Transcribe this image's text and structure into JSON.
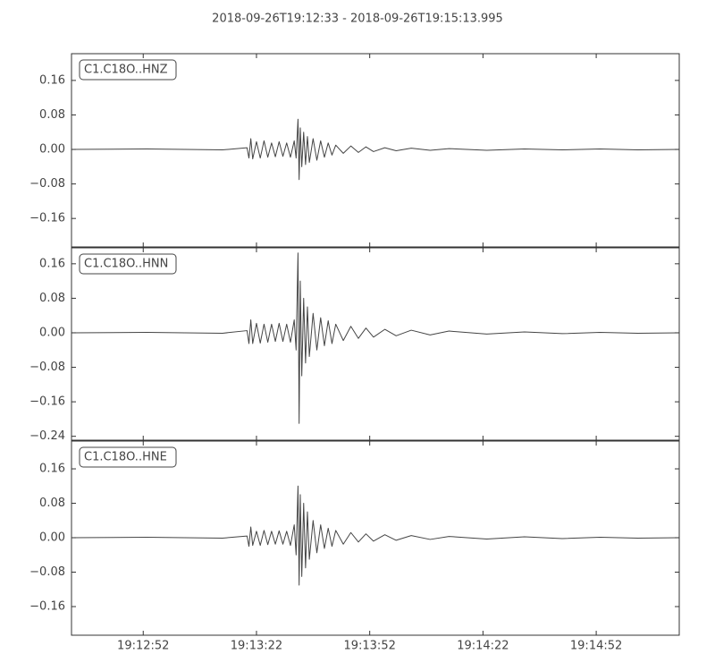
{
  "title": "2018-09-26T19:12:33  -  2018-09-26T19:15:13.995",
  "chart_data": [
    {
      "type": "line",
      "label": "C1.C18O..HNZ",
      "color": "#444444",
      "x": [
        0,
        20,
        40,
        46.5,
        47,
        47.5,
        48,
        49,
        50,
        51,
        52,
        53,
        54,
        55,
        56,
        57,
        58,
        59,
        59.5,
        60,
        60.3,
        60.6,
        61,
        61.5,
        62,
        62.5,
        63,
        64,
        65,
        66,
        67,
        68,
        69,
        70,
        72,
        74,
        76,
        78,
        80,
        83,
        86,
        90,
        95,
        100,
        110,
        120,
        130,
        140,
        150,
        160.995
      ],
      "values": [
        0,
        0.001,
        -0.001,
        0.004,
        -0.02,
        0.025,
        -0.022,
        0.018,
        -0.02,
        0.02,
        -0.018,
        0.015,
        -0.017,
        0.018,
        -0.016,
        0.015,
        -0.018,
        0.02,
        -0.02,
        0.07,
        -0.07,
        0.05,
        -0.04,
        0.04,
        -0.035,
        0.03,
        -0.03,
        0.025,
        -0.025,
        0.02,
        -0.018,
        0.015,
        -0.013,
        0.01,
        -0.009,
        0.008,
        -0.007,
        0.006,
        -0.005,
        0.004,
        -0.003,
        0.003,
        -0.002,
        0.002,
        -0.002,
        0.001,
        -0.001,
        0.001,
        -0.001,
        0
      ],
      "xlim": [
        0,
        160.995
      ],
      "ylim": [
        -0.226,
        0.222
      ],
      "yticks": [
        {
          "value": -0.16,
          "label": "−0.16"
        },
        {
          "value": -0.08,
          "label": "−0.08"
        },
        {
          "value": 0,
          "label": "0.00"
        },
        0.08,
        0.16
      ]
    },
    {
      "type": "line",
      "label": "C1.C18O..HNN",
      "color": "#444444",
      "x": [
        0,
        20,
        40,
        46.5,
        47,
        47.5,
        48,
        49,
        50,
        51,
        52,
        53,
        54,
        55,
        56,
        57,
        58,
        59,
        59.5,
        60,
        60.3,
        60.6,
        61,
        61.5,
        62,
        62.5,
        63,
        64,
        65,
        66,
        67,
        68,
        69,
        70,
        72,
        74,
        76,
        78,
        80,
        83,
        86,
        90,
        95,
        100,
        110,
        120,
        130,
        140,
        150,
        160.995
      ],
      "values": [
        0,
        0.001,
        -0.001,
        0.005,
        -0.025,
        0.03,
        -0.025,
        0.022,
        -0.024,
        0.02,
        -0.022,
        0.02,
        -0.02,
        0.022,
        -0.02,
        0.02,
        -0.022,
        0.03,
        -0.04,
        0.185,
        -0.21,
        0.12,
        -0.1,
        0.08,
        -0.07,
        0.06,
        -0.055,
        0.045,
        -0.04,
        0.035,
        -0.03,
        0.028,
        -0.025,
        0.02,
        -0.018,
        0.015,
        -0.013,
        0.011,
        -0.01,
        0.008,
        -0.007,
        0.006,
        -0.005,
        0.004,
        -0.003,
        0.002,
        -0.002,
        0.001,
        -0.001,
        0
      ],
      "xlim": [
        0,
        160.995
      ],
      "ylim": [
        -0.249,
        0.197
      ],
      "yticks": [
        {
          "value": -0.24,
          "label": "−0.24"
        },
        {
          "value": -0.16,
          "label": "−0.16"
        },
        {
          "value": -0.08,
          "label": "−0.08"
        },
        {
          "value": 0,
          "label": "0.00"
        },
        0.08,
        0.16
      ]
    },
    {
      "type": "line",
      "label": "C1.C18O..HNE",
      "color": "#444444",
      "x": [
        0,
        20,
        40,
        46.5,
        47,
        47.5,
        48,
        49,
        50,
        51,
        52,
        53,
        54,
        55,
        56,
        57,
        58,
        59,
        59.5,
        60,
        60.3,
        60.6,
        61,
        61.5,
        62,
        62.5,
        63,
        64,
        65,
        66,
        67,
        68,
        69,
        70,
        72,
        74,
        76,
        78,
        80,
        83,
        86,
        90,
        95,
        100,
        110,
        120,
        130,
        140,
        150,
        160.995
      ],
      "values": [
        0,
        0.001,
        -0.001,
        0.004,
        -0.02,
        0.025,
        -0.018,
        0.015,
        -0.018,
        0.017,
        -0.016,
        0.015,
        -0.015,
        0.016,
        -0.015,
        0.015,
        -0.018,
        0.03,
        -0.04,
        0.12,
        -0.11,
        0.1,
        -0.09,
        0.08,
        -0.07,
        0.06,
        -0.05,
        0.04,
        -0.035,
        0.03,
        -0.025,
        0.022,
        -0.02,
        0.017,
        -0.015,
        0.012,
        -0.01,
        0.009,
        -0.008,
        0.007,
        -0.006,
        0.005,
        -0.004,
        0.003,
        -0.003,
        0.002,
        -0.002,
        0.001,
        -0.001,
        0
      ],
      "xlim": [
        0,
        160.995
      ],
      "ylim": [
        -0.2265,
        0.2245
      ],
      "yticks": [
        {
          "value": -0.16,
          "label": "−0.16"
        },
        {
          "value": -0.08,
          "label": "−0.08"
        },
        {
          "value": 0,
          "label": "0.00"
        },
        0.08,
        0.16
      ],
      "xticks": [
        {
          "value": 19,
          "label": "19:12:52"
        },
        {
          "value": 49,
          "label": "19:13:22"
        },
        {
          "value": 79,
          "label": "19:13:52"
        },
        {
          "value": 109,
          "label": "19:14:22"
        },
        {
          "value": 139,
          "label": "19:14:52"
        }
      ]
    }
  ]
}
